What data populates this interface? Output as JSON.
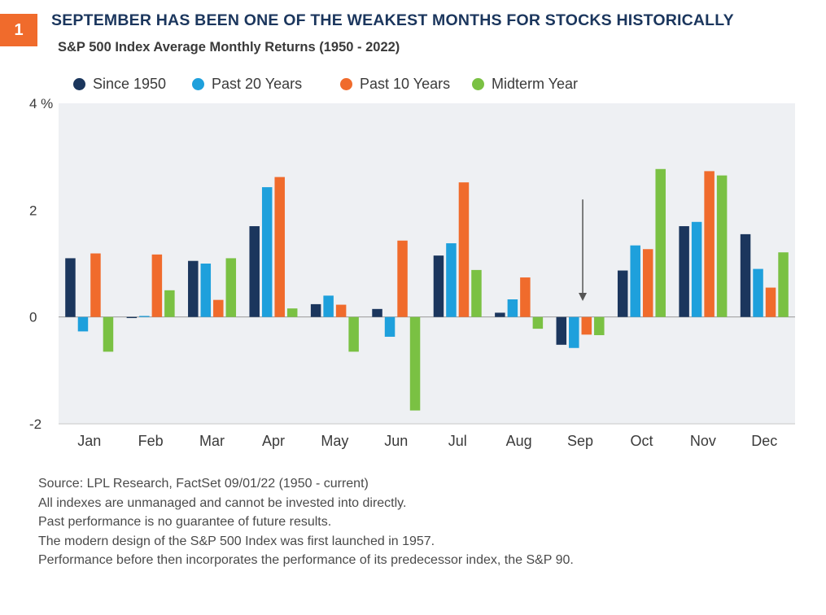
{
  "header": {
    "badge": "1",
    "title": "SEPTEMBER HAS BEEN ONE OF THE WEAKEST MONTHS FOR STOCKS HISTORICALLY",
    "subtitle": "S&P 500 Index Average Monthly Returns (1950 - 2022)"
  },
  "colors": {
    "navy": "#1b365d",
    "light_blue": "#1ea0dc",
    "orange": "#f06b2c",
    "green": "#7ac143",
    "plot_bg": "#eef0f3"
  },
  "chart_data": {
    "type": "bar",
    "categories": [
      "Jan",
      "Feb",
      "Mar",
      "Apr",
      "May",
      "Jun",
      "Jul",
      "Aug",
      "Sep",
      "Oct",
      "Nov",
      "Dec"
    ],
    "series": [
      {
        "name": "Since 1950",
        "color": "#1b365d",
        "values": [
          1.1,
          -0.02,
          1.05,
          1.7,
          0.24,
          0.15,
          1.15,
          0.08,
          -0.52,
          0.87,
          1.7,
          1.55
        ]
      },
      {
        "name": "Past 20 Years",
        "color": "#1ea0dc",
        "values": [
          -0.27,
          0.02,
          1.0,
          2.43,
          0.4,
          -0.37,
          1.38,
          0.33,
          -0.58,
          1.34,
          1.78,
          0.9
        ]
      },
      {
        "name": "Past 10 Years",
        "color": "#f06b2c",
        "values": [
          1.19,
          1.17,
          0.32,
          2.62,
          0.23,
          1.43,
          2.52,
          0.74,
          -0.33,
          1.27,
          2.73,
          0.55
        ]
      },
      {
        "name": "Midterm Year",
        "color": "#7ac143",
        "values": [
          -0.65,
          0.5,
          1.1,
          0.16,
          -0.65,
          -1.75,
          0.88,
          -0.22,
          -0.34,
          2.77,
          2.65,
          1.21
        ]
      }
    ],
    "ylim": [
      -2,
      4
    ],
    "yticks": [
      {
        "value": 4,
        "label": "4 %"
      },
      {
        "value": 2,
        "label": "2"
      },
      {
        "value": 0,
        "label": "0"
      },
      {
        "value": -2,
        "label": "-2"
      }
    ],
    "annotation": {
      "category": "Sep",
      "from": 2.2,
      "to": 0.3,
      "type": "arrow"
    },
    "xlabel": "",
    "ylabel": "",
    "grid": false,
    "legend": "top"
  },
  "footnotes": [
    "Source: LPL Research, FactSet  09/01/22  (1950 - current)",
    "All indexes are unmanaged and cannot be invested into directly.",
    "Past performance is no guarantee of future results.",
    "The modern design of the S&P 500 Index was first launched in 1957.",
    "Performance before then incorporates the performance of its  predecessor index, the S&P 90."
  ]
}
